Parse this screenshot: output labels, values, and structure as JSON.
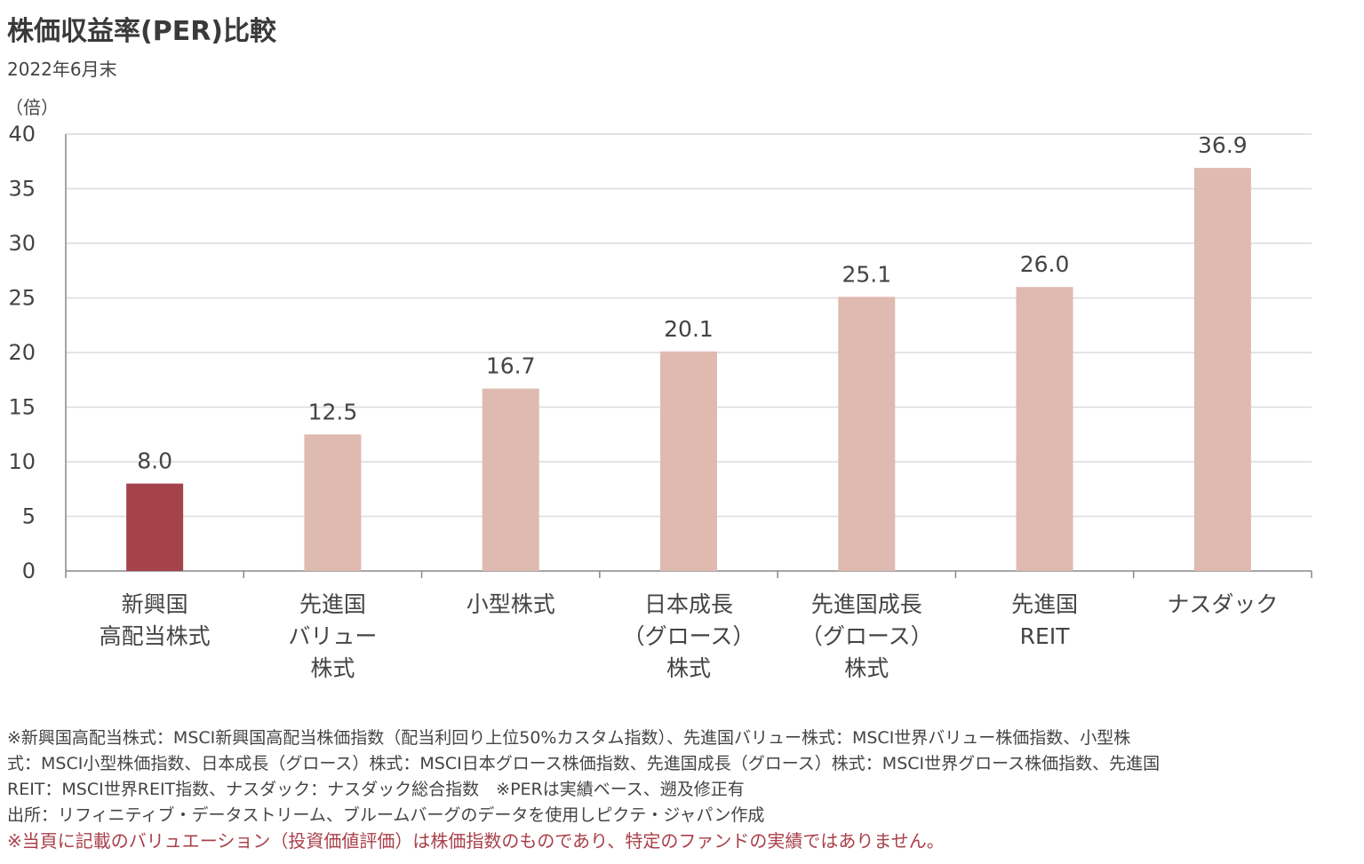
{
  "header": {
    "title": "株価収益率(PER)比較",
    "subtitle": "2022年6月末"
  },
  "colors": {
    "highlight": "#a5434b",
    "bar": "#dfbab1",
    "grid": "#dcdcdc",
    "axis": "#888888",
    "warning_text": "#a9404a"
  },
  "chart_data": {
    "type": "bar",
    "title": "株価収益率(PER)比較",
    "subtitle": "2022年6月末",
    "ylabel": "（倍）",
    "ylim": [
      0,
      40
    ],
    "yticks": [
      0,
      5,
      10,
      15,
      20,
      25,
      30,
      35,
      40
    ],
    "grid": true,
    "categories": [
      [
        "新興国",
        "高配当株式"
      ],
      [
        "先進国",
        "バリュー",
        "株式"
      ],
      [
        "小型株式"
      ],
      [
        "日本成長",
        "（グロース）",
        "株式"
      ],
      [
        "先進国成長",
        "（グロース）",
        "株式"
      ],
      [
        "先進国",
        "REIT"
      ],
      [
        "ナスダック"
      ]
    ],
    "values": [
      8.0,
      12.5,
      16.7,
      20.1,
      25.1,
      26.0,
      36.9
    ],
    "value_labels": [
      "8.0",
      "12.5",
      "16.7",
      "20.1",
      "25.1",
      "26.0",
      "36.9"
    ],
    "highlighted_index": 0
  },
  "notes": {
    "lines": [
      "※新興国高配当株式：MSCI新興国高配当株価指数（配当利回り上位50%カスタム指数）、先進国バリュー株式：MSCI世界バリュー株価指数、小型株",
      "式：MSCI小型株価指数、日本成長（グロース）株式：MSCI日本グロース株価指数、先進国成長（グロース）株式：MSCI世界グロース株価指数、先進国",
      "REIT：MSCI世界REIT指数、ナスダック：ナスダック総合指数　※PERは実績ベース、遡及修正有",
      "出所：リフィニティブ・データストリーム、ブルームバーグのデータを使用しピクテ・ジャパン作成"
    ],
    "warning": "※当頁に記載のバリュエーション（投資価値評価）は株価指数のものであり、特定のファンドの実績ではありません。"
  }
}
